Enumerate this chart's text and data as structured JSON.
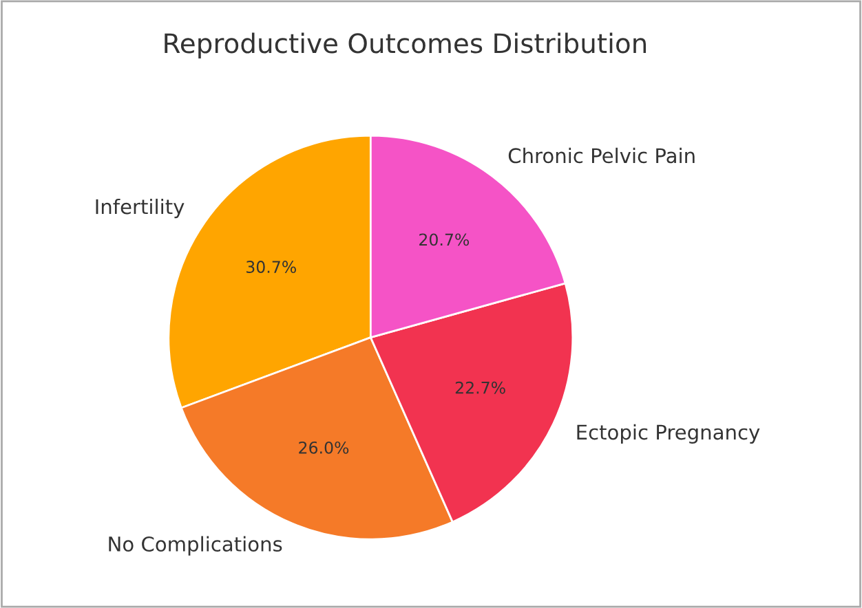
{
  "chart_data": {
    "type": "pie",
    "title": "Reproductive Outcomes Distribution",
    "categories": [
      "Infertility",
      "No Complications",
      "Ectopic Pregnancy",
      "Chronic Pelvic Pain"
    ],
    "values": [
      30.7,
      26.0,
      22.7,
      20.7
    ],
    "colors": [
      "#ffa500",
      "#f57a28",
      "#f23350",
      "#f553c6"
    ],
    "value_labels": [
      "30.7%",
      "26.0%",
      "22.7%",
      "20.7%"
    ]
  }
}
